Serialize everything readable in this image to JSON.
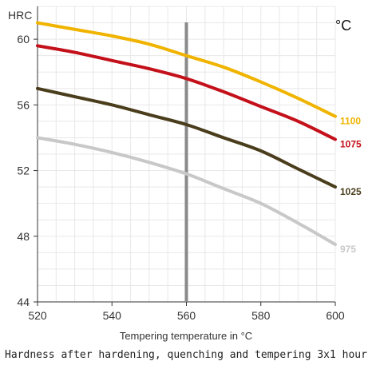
{
  "chart_data": {
    "type": "line",
    "title": "",
    "caption": "Hardness after hardening, quenching and tempering  3x1 hour",
    "xlabel": "Tempering temperature in °C",
    "ylabel": "HRC",
    "series_unit_label": "°C",
    "xlim": [
      520,
      600
    ],
    "ylim": [
      44,
      62
    ],
    "x_ticks": [
      520,
      540,
      560,
      580,
      600
    ],
    "y_ticks": [
      44,
      48,
      52,
      56,
      60
    ],
    "grid": true,
    "marker_x": 560,
    "x": [
      520,
      530,
      540,
      550,
      560,
      570,
      580,
      590,
      600
    ],
    "series": [
      {
        "name": "1100",
        "color": "#f0b400",
        "values": [
          61.0,
          60.6,
          60.2,
          59.7,
          59.0,
          58.3,
          57.4,
          56.4,
          55.3
        ]
      },
      {
        "name": "1075",
        "color": "#c4101a",
        "values": [
          59.6,
          59.2,
          58.7,
          58.2,
          57.6,
          56.8,
          55.9,
          55.0,
          53.9
        ]
      },
      {
        "name": "1025",
        "color": "#4a3d1c",
        "values": [
          57.0,
          56.5,
          56.0,
          55.4,
          54.8,
          54.0,
          53.2,
          52.1,
          51.0
        ]
      },
      {
        "name": "975",
        "color": "#c8c8c8",
        "values": [
          54.0,
          53.6,
          53.1,
          52.5,
          51.8,
          50.9,
          50.0,
          48.8,
          47.5
        ]
      }
    ]
  }
}
